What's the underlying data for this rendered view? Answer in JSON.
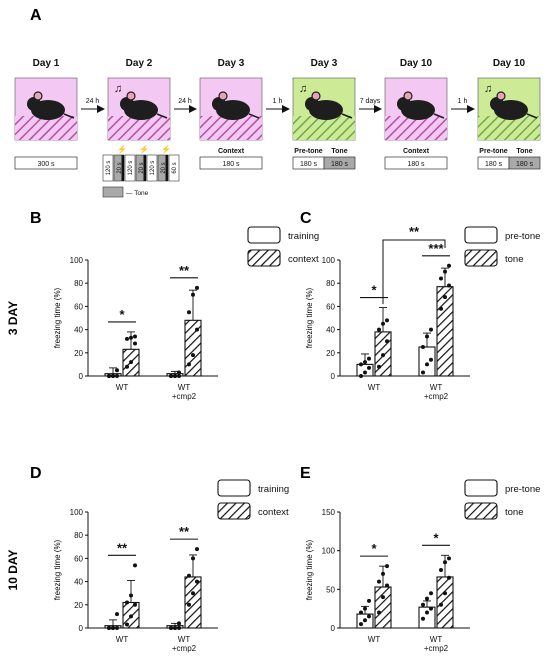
{
  "panel_letters": {
    "A": "A",
    "B": "B",
    "C": "C",
    "D": "D",
    "E": "E"
  },
  "row_labels": {
    "top": "3 DAY",
    "bottom": "10 DAY"
  },
  "timeline": {
    "days": [
      {
        "label": "Day 1",
        "tone": false,
        "bg": "pink",
        "boxes": [
          {
            "text": "300 s",
            "shade": false
          }
        ]
      },
      {
        "label": "Day 2",
        "tone": true,
        "bg": "pink",
        "boxes": []
      },
      {
        "label": "Day 3",
        "tone": false,
        "bg": "pink",
        "caption": "Context",
        "boxes": [
          {
            "text": "180 s",
            "shade": false
          }
        ]
      },
      {
        "label": "Day 3",
        "tone": true,
        "bg": "green",
        "captions": [
          "Pre-tone",
          "Tone"
        ],
        "boxes": [
          {
            "text": "180 s",
            "shade": false
          },
          {
            "text": "180 s",
            "shade": true
          }
        ]
      },
      {
        "label": "Day 10",
        "tone": false,
        "bg": "pink",
        "caption": "Context",
        "boxes": [
          {
            "text": "180 s",
            "shade": false
          }
        ]
      },
      {
        "label": "Day 10",
        "tone": true,
        "bg": "green",
        "captions": [
          "Pre-tone",
          "Tone"
        ],
        "boxes": [
          {
            "text": "180 s",
            "shade": false
          },
          {
            "text": "180 s",
            "shade": true
          }
        ]
      }
    ],
    "arrows": [
      "24 h",
      "24 h",
      "1 h",
      "7 days",
      "1 h"
    ],
    "day2_protocol": [
      "120 s",
      "20 s",
      "120 s",
      "20 s",
      "120 s",
      "20 s",
      "60 s"
    ],
    "tone_legend": "— Tone",
    "colors": {
      "pink": "#f3c8f2",
      "green": "#cdea96",
      "hatch_pink": "#b44fa8",
      "hatch_green": "#6fa84a",
      "tone_gray": "#a9a9a9",
      "shock": "#f2b21a"
    }
  },
  "chart_data": [
    {
      "panel": "B",
      "type": "bar",
      "categories": [
        "WT",
        "WT\n+cmp2"
      ],
      "series": [
        {
          "name": "training",
          "values": [
            2,
            2
          ]
        },
        {
          "name": "context",
          "values": [
            23,
            48
          ]
        }
      ],
      "errors": [
        [
          5,
          2
        ],
        [
          15,
          26
        ]
      ],
      "points": [
        [
          [
            0,
            0,
            0,
            0,
            0,
            5
          ],
          [
            0,
            0,
            0,
            0,
            0,
            3
          ]
        ],
        [
          [
            8,
            12,
            28,
            32,
            33,
            34
          ],
          [
            10,
            18,
            40,
            55,
            70,
            76
          ]
        ]
      ],
      "ylabel": "freezing time (%)",
      "ylim": [
        0,
        100
      ],
      "yticks": [
        0,
        20,
        40,
        60,
        80,
        100
      ],
      "significance": [
        {
          "group": 0,
          "mark": "*"
        },
        {
          "group": 1,
          "mark": "**"
        }
      ]
    },
    {
      "panel": "C",
      "type": "bar",
      "categories": [
        "WT",
        "WT\n+cmp2"
      ],
      "series": [
        {
          "name": "pre-tone",
          "values": [
            10,
            25
          ]
        },
        {
          "name": "tone",
          "values": [
            38,
            77
          ]
        }
      ],
      "errors": [
        [
          9,
          12
        ],
        [
          21,
          16
        ]
      ],
      "points": [
        [
          [
            0,
            3,
            7,
            10,
            12,
            15
          ],
          [
            3,
            10,
            14,
            25,
            34,
            40
          ]
        ],
        [
          [
            8,
            18,
            30,
            40,
            45,
            48
          ],
          [
            58,
            68,
            78,
            84,
            90,
            95
          ]
        ]
      ],
      "ylabel": "freezing time (%)",
      "ylim": [
        0,
        100
      ],
      "yticks": [
        0,
        20,
        40,
        60,
        80,
        100
      ],
      "significance": [
        {
          "group": 0,
          "mark": "*"
        },
        {
          "group": 1,
          "mark": "***"
        },
        {
          "across": "tone",
          "mark": "**"
        }
      ]
    },
    {
      "panel": "D",
      "type": "bar",
      "categories": [
        "WT",
        "WT\n+cmp2"
      ],
      "series": [
        {
          "name": "training",
          "values": [
            2,
            2
          ]
        },
        {
          "name": "context",
          "values": [
            22,
            44
          ]
        }
      ],
      "errors": [
        [
          5,
          2
        ],
        [
          19,
          19
        ]
      ],
      "points": [
        [
          [
            0,
            0,
            0,
            0,
            0,
            12
          ],
          [
            0,
            0,
            0,
            0,
            0,
            4
          ]
        ],
        [
          [
            3,
            10,
            20,
            22,
            28,
            54
          ],
          [
            20,
            30,
            40,
            45,
            60,
            68
          ]
        ]
      ],
      "ylabel": "freezing time (%)",
      "ylim": [
        0,
        100
      ],
      "yticks": [
        0,
        20,
        40,
        60,
        80,
        100
      ],
      "significance": [
        {
          "group": 0,
          "mark": "**"
        },
        {
          "group": 1,
          "mark": "**"
        }
      ]
    },
    {
      "panel": "E",
      "type": "bar",
      "categories": [
        "WT",
        "WT\n+cmp2"
      ],
      "series": [
        {
          "name": "pre-tone",
          "values": [
            18,
            27
          ]
        },
        {
          "name": "tone",
          "values": [
            53,
            66
          ]
        }
      ],
      "errors": [
        [
          10,
          8
        ],
        [
          27,
          28
        ]
      ],
      "points": [
        [
          [
            5,
            10,
            15,
            20,
            25,
            35
          ],
          [
            12,
            20,
            25,
            30,
            38,
            45
          ]
        ],
        [
          [
            20,
            40,
            55,
            60,
            70,
            80
          ],
          [
            30,
            45,
            65,
            75,
            85,
            90
          ]
        ]
      ],
      "ylabel": "freezing time (%)",
      "ylim": [
        0,
        150
      ],
      "yticks": [
        0,
        50,
        100,
        150
      ],
      "significance": [
        {
          "group": 0,
          "mark": "*"
        },
        {
          "group": 1,
          "mark": "*"
        }
      ]
    }
  ]
}
